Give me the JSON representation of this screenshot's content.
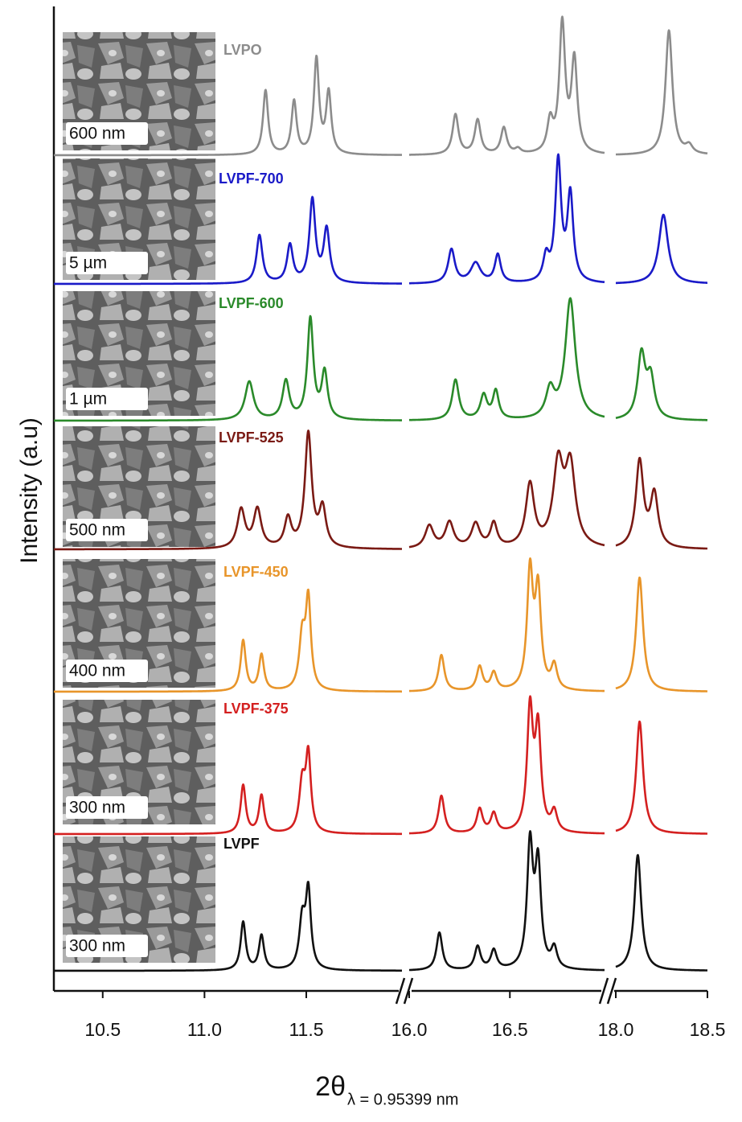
{
  "chart_data": {
    "type": "line",
    "y_label": "Intensity (a.u)",
    "x_label": "2θ",
    "x_label_subscript": "λ = 0.95399 nm",
    "x_segments": [
      {
        "xlim": [
          10.26,
          11.97
        ],
        "xticks": [
          10.5,
          {
            "value": 11,
            "label": "11.0"
          },
          11.5
        ]
      },
      {
        "xlim": [
          16.0,
          16.97
        ],
        "xticks": [
          {
            "value": 16,
            "label": "16.0"
          },
          16.5
        ]
      },
      {
        "xlim": [
          18.0,
          18.5
        ],
        "xticks": [
          {
            "value": 18,
            "label": "18.0"
          },
          18.5
        ]
      }
    ],
    "series": [
      {
        "name": "LVPO",
        "color": "#8c8c8c",
        "scale_bar": "600 nm",
        "peaks_x": [
          11.3,
          11.44,
          11.55,
          11.61,
          16.23,
          16.34,
          16.47,
          16.54,
          16.7,
          16.76,
          16.82,
          18.29,
          18.4
        ],
        "peaks_height": [
          80,
          66,
          118,
          76,
          50,
          43,
          33,
          6,
          38,
          160,
          115,
          155,
          10
        ],
        "peaks_width": [
          0.03,
          0.03,
          0.03,
          0.03,
          0.035,
          0.035,
          0.035,
          0.035,
          0.035,
          0.035,
          0.035,
          0.045,
          0.045
        ]
      },
      {
        "name": "LVPF-700",
        "color": "#1a1ac8",
        "scale_bar": "5 µm",
        "peaks_x": [
          11.27,
          11.42,
          11.53,
          11.6,
          16.21,
          16.33,
          16.44,
          16.68,
          16.74,
          16.8,
          18.26
        ],
        "peaks_height": [
          60,
          47,
          103,
          66,
          42,
          25,
          35,
          30,
          150,
          108,
          86
        ],
        "peaks_width": [
          0.035,
          0.035,
          0.035,
          0.035,
          0.04,
          0.06,
          0.035,
          0.035,
          0.035,
          0.035,
          0.06
        ]
      },
      {
        "name": "LVPF-600",
        "color": "#2a8a2a",
        "scale_bar": "1 µm",
        "peaks_x": [
          11.22,
          11.4,
          11.52,
          11.59,
          16.23,
          16.37,
          16.43,
          16.7,
          16.8,
          18.14,
          18.19
        ],
        "peaks_height": [
          48,
          48,
          125,
          58,
          50,
          30,
          35,
          35,
          150,
          80,
          50
        ],
        "peaks_width": [
          0.05,
          0.04,
          0.035,
          0.035,
          0.04,
          0.04,
          0.035,
          0.05,
          0.06,
          0.05,
          0.05
        ]
      },
      {
        "name": "LVPF-525",
        "color": "#7a1a14",
        "scale_bar": "500 nm",
        "peaks_x": [
          11.18,
          11.26,
          11.41,
          11.51,
          11.58,
          16.1,
          16.2,
          16.33,
          16.42,
          16.6,
          16.74,
          16.8,
          18.13,
          18.21
        ],
        "peaks_height": [
          48,
          48,
          36,
          142,
          48,
          28,
          32,
          30,
          30,
          78,
          100,
          98,
          108,
          66
        ],
        "peaks_width": [
          0.045,
          0.045,
          0.04,
          0.04,
          0.04,
          0.05,
          0.05,
          0.05,
          0.04,
          0.05,
          0.06,
          0.06,
          0.05,
          0.05
        ]
      },
      {
        "name": "LVPF-450",
        "color": "#e8952a",
        "scale_bar": "400 nm",
        "peaks_x": [
          11.19,
          11.28,
          11.48,
          11.51,
          16.16,
          16.35,
          16.42,
          16.6,
          16.64,
          16.72,
          18.13
        ],
        "peaks_height": [
          63,
          45,
          65,
          110,
          45,
          30,
          22,
          145,
          120,
          30,
          142
        ],
        "peaks_width": [
          0.03,
          0.03,
          0.035,
          0.03,
          0.035,
          0.035,
          0.035,
          0.035,
          0.035,
          0.035,
          0.045
        ]
      },
      {
        "name": "LVPF-375",
        "color": "#d42020",
        "scale_bar": "300 nm",
        "peaks_x": [
          11.19,
          11.28,
          11.48,
          11.51,
          16.16,
          16.35,
          16.42,
          16.6,
          16.64,
          16.72,
          18.13
        ],
        "peaks_height": [
          60,
          47,
          60,
          94,
          47,
          30,
          24,
          150,
          124,
          25,
          140
        ],
        "peaks_width": [
          0.03,
          0.03,
          0.035,
          0.03,
          0.035,
          0.035,
          0.035,
          0.035,
          0.035,
          0.035,
          0.045
        ]
      },
      {
        "name": "LVPF",
        "color": "#111111",
        "scale_bar": "300 nm",
        "peaks_x": [
          11.19,
          11.28,
          11.48,
          11.51,
          16.15,
          16.34,
          16.42,
          16.6,
          16.64,
          16.72,
          18.12
        ],
        "peaks_height": [
          60,
          43,
          60,
          95,
          47,
          29,
          24,
          152,
          126,
          25,
          144
        ],
        "peaks_width": [
          0.03,
          0.03,
          0.035,
          0.03,
          0.035,
          0.035,
          0.035,
          0.035,
          0.035,
          0.035,
          0.045
        ]
      }
    ]
  }
}
